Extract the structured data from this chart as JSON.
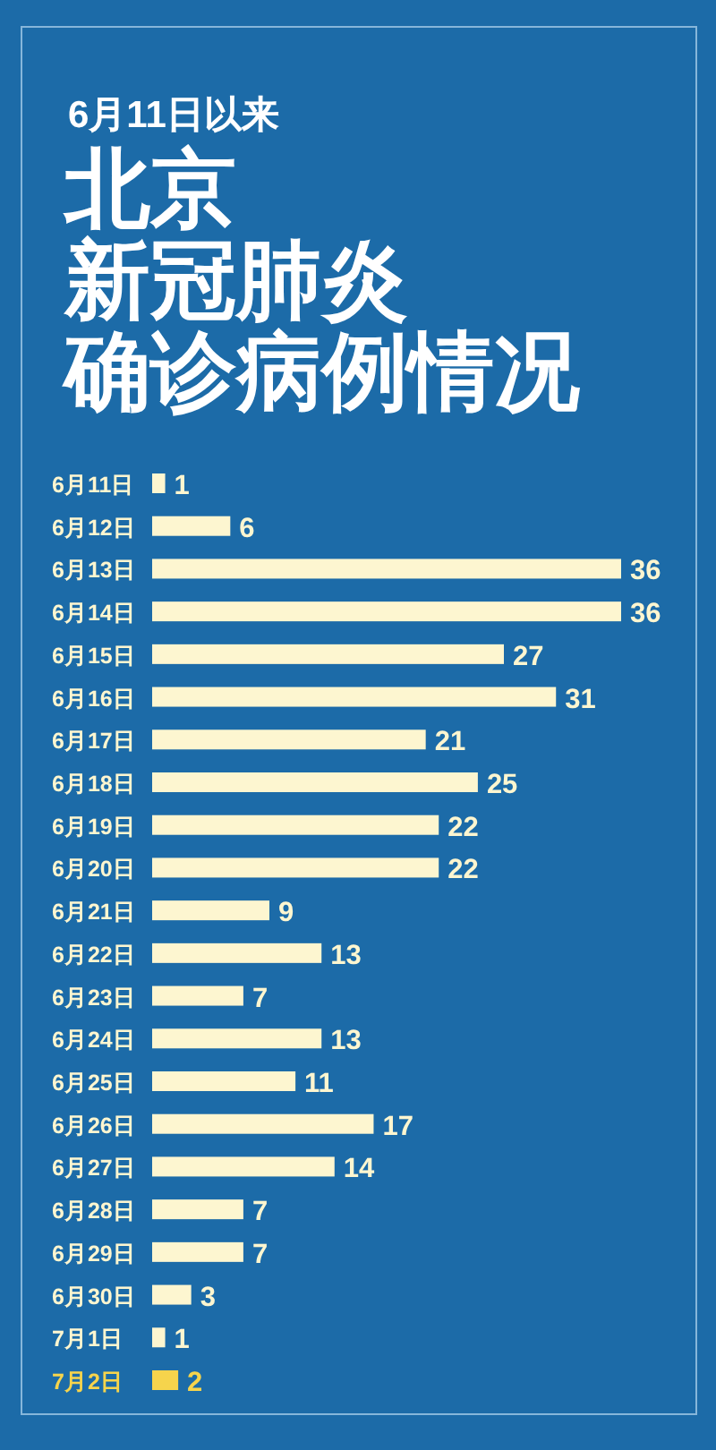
{
  "chart_data": {
    "type": "bar",
    "orientation": "horizontal",
    "subtitle": "6月11日以来",
    "title": "北京新冠肺炎确诊病例情况",
    "categories": [
      "6月11日",
      "6月12日",
      "6月13日",
      "6月14日",
      "6月15日",
      "6月16日",
      "6月17日",
      "6月18日",
      "6月19日",
      "6月20日",
      "6月21日",
      "6月22日",
      "6月23日",
      "6月24日",
      "6月25日",
      "6月26日",
      "6月27日",
      "6月28日",
      "6月29日",
      "6月30日",
      "7月1日",
      "7月2日"
    ],
    "values": [
      1,
      6,
      36,
      36,
      27,
      31,
      21,
      25,
      22,
      22,
      9,
      13,
      7,
      13,
      11,
      17,
      14,
      7,
      7,
      3,
      1,
      2
    ],
    "colors": [
      "#fdf6d0",
      "#fdf6d0",
      "#fdf6d0",
      "#fdf6d0",
      "#fdf6d0",
      "#fdf6d0",
      "#fdf6d0",
      "#fdf6d0",
      "#fdf6d0",
      "#fdf6d0",
      "#fdf6d0",
      "#fdf6d0",
      "#fdf6d0",
      "#fdf6d0",
      "#fdf6d0",
      "#fdf6d0",
      "#fdf6d0",
      "#fdf6d0",
      "#fdf6d0",
      "#fdf6d0",
      "#fdf6d0",
      "#f6d44c"
    ],
    "data_labels": true
  }
}
